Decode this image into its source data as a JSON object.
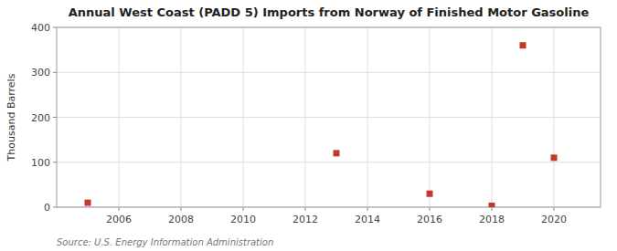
{
  "chart_data": {
    "type": "scatter",
    "title": "Annual West Coast (PADD 5) Imports from Norway of Finished Motor Gasoline",
    "y_label": "Thousand Barrels",
    "annotations": [
      "Source: U.S. Energy Information Administration"
    ],
    "x": [
      2005,
      2013,
      2016,
      2018,
      2019,
      2020
    ],
    "values": [
      10,
      120,
      30,
      3,
      360,
      110
    ],
    "color": "#c0392b",
    "marker": "square",
    "xlim": [
      2004,
      2021.5
    ],
    "ylim": [
      0,
      400
    ],
    "xticks": [
      2006,
      2008,
      2010,
      2012,
      2014,
      2016,
      2018,
      2020
    ],
    "yticks": [
      0,
      100,
      200,
      300,
      400
    ],
    "grid": true
  }
}
